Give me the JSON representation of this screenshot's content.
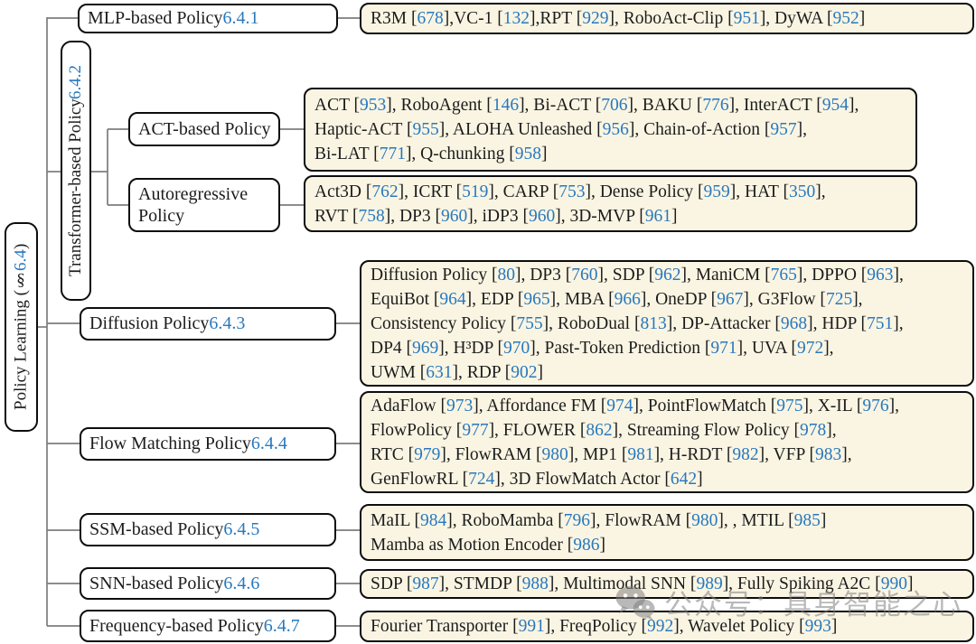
{
  "tree": {
    "root_label": [
      {
        "text": "Policy Learning (§ "
      },
      {
        "ref": "6.4"
      },
      {
        "text": ")"
      }
    ],
    "branches": {
      "mlp": {
        "label": [
          {
            "text": "MLP-based Policy "
          },
          {
            "ref": "6.4.1"
          }
        ],
        "leaf": [
          [
            {
              "text": "R3M ["
            },
            {
              "ref": "678"
            },
            {
              "text": "],VC-1 ["
            },
            {
              "ref": "132"
            },
            {
              "text": "],RPT ["
            },
            {
              "ref": "929"
            },
            {
              "text": "], RoboAct-Clip ["
            },
            {
              "ref": "951"
            },
            {
              "text": "], DyWA ["
            },
            {
              "ref": "952"
            },
            {
              "text": "]"
            }
          ]
        ]
      },
      "transformer": {
        "label": [
          {
            "text": "Transformer-based Policy "
          },
          {
            "ref": "6.4.2"
          }
        ]
      },
      "act": {
        "label": [
          {
            "text": "ACT-based Policy"
          }
        ],
        "leaf": [
          [
            {
              "text": "ACT ["
            },
            {
              "ref": "953"
            },
            {
              "text": "], RoboAgent ["
            },
            {
              "ref": "146"
            },
            {
              "text": "], Bi-ACT ["
            },
            {
              "ref": "706"
            },
            {
              "text": "], BAKU ["
            },
            {
              "ref": "776"
            },
            {
              "text": "], InterACT ["
            },
            {
              "ref": "954"
            },
            {
              "text": "],"
            }
          ],
          [
            {
              "text": "Haptic-ACT ["
            },
            {
              "ref": "955"
            },
            {
              "text": "], ALOHA Unleashed ["
            },
            {
              "ref": "956"
            },
            {
              "text": "], Chain-of-Action ["
            },
            {
              "ref": "957"
            },
            {
              "text": "],"
            }
          ],
          [
            {
              "text": "Bi-LAT ["
            },
            {
              "ref": "771"
            },
            {
              "text": "], Q-chunking ["
            },
            {
              "ref": "958"
            },
            {
              "text": "]"
            }
          ]
        ]
      },
      "autoregressive": {
        "label": [
          {
            "text": "Autoregressive Policy"
          }
        ],
        "leaf": [
          [
            {
              "text": "Act3D ["
            },
            {
              "ref": "762"
            },
            {
              "text": "], ICRT ["
            },
            {
              "ref": "519"
            },
            {
              "text": "], CARP ["
            },
            {
              "ref": "753"
            },
            {
              "text": "], Dense Policy ["
            },
            {
              "ref": "959"
            },
            {
              "text": "], HAT ["
            },
            {
              "ref": "350"
            },
            {
              "text": "],"
            }
          ],
          [
            {
              "text": "RVT ["
            },
            {
              "ref": "758"
            },
            {
              "text": "], DP3 ["
            },
            {
              "ref": "960"
            },
            {
              "text": "], iDP3 ["
            },
            {
              "ref": "960"
            },
            {
              "text": "], 3D-MVP ["
            },
            {
              "ref": "961"
            },
            {
              "text": "]"
            }
          ]
        ]
      },
      "diffusion": {
        "label": [
          {
            "text": "Diffusion Policy "
          },
          {
            "ref": "6.4.3"
          }
        ],
        "leaf": [
          [
            {
              "text": "Diffusion Policy ["
            },
            {
              "ref": "80"
            },
            {
              "text": "], DP3 ["
            },
            {
              "ref": "760"
            },
            {
              "text": "], SDP ["
            },
            {
              "ref": "962"
            },
            {
              "text": "], ManiCM ["
            },
            {
              "ref": "765"
            },
            {
              "text": "], DPPO ["
            },
            {
              "ref": "963"
            },
            {
              "text": "],"
            }
          ],
          [
            {
              "text": "EquiBot ["
            },
            {
              "ref": "964"
            },
            {
              "text": "], EDP ["
            },
            {
              "ref": "965"
            },
            {
              "text": "], MBA ["
            },
            {
              "ref": "966"
            },
            {
              "text": "], OneDP ["
            },
            {
              "ref": "967"
            },
            {
              "text": "], G3Flow ["
            },
            {
              "ref": "725"
            },
            {
              "text": "],"
            }
          ],
          [
            {
              "text": "Consistency Policy ["
            },
            {
              "ref": "755"
            },
            {
              "text": "], RoboDual ["
            },
            {
              "ref": "813"
            },
            {
              "text": "], DP-Attacker ["
            },
            {
              "ref": "968"
            },
            {
              "text": "], HDP ["
            },
            {
              "ref": "751"
            },
            {
              "text": "],"
            }
          ],
          [
            {
              "text": "DP4 ["
            },
            {
              "ref": "969"
            },
            {
              "text": "], H³DP ["
            },
            {
              "ref": "970"
            },
            {
              "text": "], Past-Token Prediction ["
            },
            {
              "ref": "971"
            },
            {
              "text": "], UVA ["
            },
            {
              "ref": "972"
            },
            {
              "text": "],"
            }
          ],
          [
            {
              "text": "UWM ["
            },
            {
              "ref": "631"
            },
            {
              "text": "], RDP ["
            },
            {
              "ref": "902"
            },
            {
              "text": "]"
            }
          ]
        ]
      },
      "flow_matching": {
        "label": [
          {
            "text": "Flow Matching Policy "
          },
          {
            "ref": "6.4.4"
          }
        ],
        "leaf": [
          [
            {
              "text": "AdaFlow ["
            },
            {
              "ref": "973"
            },
            {
              "text": "], Affordance FM ["
            },
            {
              "ref": "974"
            },
            {
              "text": "], PointFlowMatch ["
            },
            {
              "ref": "975"
            },
            {
              "text": "], X-IL ["
            },
            {
              "ref": "976"
            },
            {
              "text": "],"
            }
          ],
          [
            {
              "text": "FlowPolicy ["
            },
            {
              "ref": "977"
            },
            {
              "text": "], FLOWER ["
            },
            {
              "ref": "862"
            },
            {
              "text": "], Streaming Flow Policy ["
            },
            {
              "ref": "978"
            },
            {
              "text": "],"
            }
          ],
          [
            {
              "text": "RTC ["
            },
            {
              "ref": "979"
            },
            {
              "text": "], FlowRAM ["
            },
            {
              "ref": "980"
            },
            {
              "text": "], MP1 ["
            },
            {
              "ref": "981"
            },
            {
              "text": "], H-RDT ["
            },
            {
              "ref": "982"
            },
            {
              "text": "], VFP ["
            },
            {
              "ref": "983"
            },
            {
              "text": "],"
            }
          ],
          [
            {
              "text": "GenFlowRL ["
            },
            {
              "ref": "724"
            },
            {
              "text": "], 3D FlowMatch Actor ["
            },
            {
              "ref": "642"
            },
            {
              "text": "]"
            }
          ]
        ]
      },
      "ssm": {
        "label": [
          {
            "text": "SSM-based Policy "
          },
          {
            "ref": "6.4.5"
          }
        ],
        "leaf": [
          [
            {
              "text": "MaIL ["
            },
            {
              "ref": "984"
            },
            {
              "text": "], RoboMamba ["
            },
            {
              "ref": "796"
            },
            {
              "text": "], FlowRAM ["
            },
            {
              "ref": "980"
            },
            {
              "text": "], , MTIL ["
            },
            {
              "ref": "985"
            },
            {
              "text": "]"
            }
          ],
          [
            {
              "text": "Mamba as Motion Encoder ["
            },
            {
              "ref": "986"
            },
            {
              "text": "]"
            }
          ]
        ]
      },
      "snn": {
        "label": [
          {
            "text": "SNN-based Policy "
          },
          {
            "ref": "6.4.6"
          }
        ],
        "leaf": [
          [
            {
              "text": "SDP ["
            },
            {
              "ref": "987"
            },
            {
              "text": "], STMDP ["
            },
            {
              "ref": "988"
            },
            {
              "text": "], Multimodal SNN ["
            },
            {
              "ref": "989"
            },
            {
              "text": "], Fully Spiking A2C ["
            },
            {
              "ref": "990"
            },
            {
              "text": "]"
            }
          ]
        ]
      },
      "frequency": {
        "label": [
          {
            "text": "Frequency-based Policy "
          },
          {
            "ref": "6.4.7"
          }
        ],
        "leaf": [
          [
            {
              "text": "Fourier Transporter ["
            },
            {
              "ref": "991"
            },
            {
              "text": "], FreqPolicy ["
            },
            {
              "ref": "992"
            },
            {
              "text": "], Wavelet Policy ["
            },
            {
              "ref": "993"
            },
            {
              "text": "]"
            }
          ]
        ]
      }
    },
    "watermark": {
      "icon": "wechat-icon",
      "text": "公众号：具身智能之心"
    },
    "colors": {
      "ref_blue": "#2878be",
      "leaf_bg": "#faf5e3",
      "line_gray": "#7d7d7d",
      "border_black": "#0d0d0d",
      "watermark_gray": "#808080"
    }
  }
}
